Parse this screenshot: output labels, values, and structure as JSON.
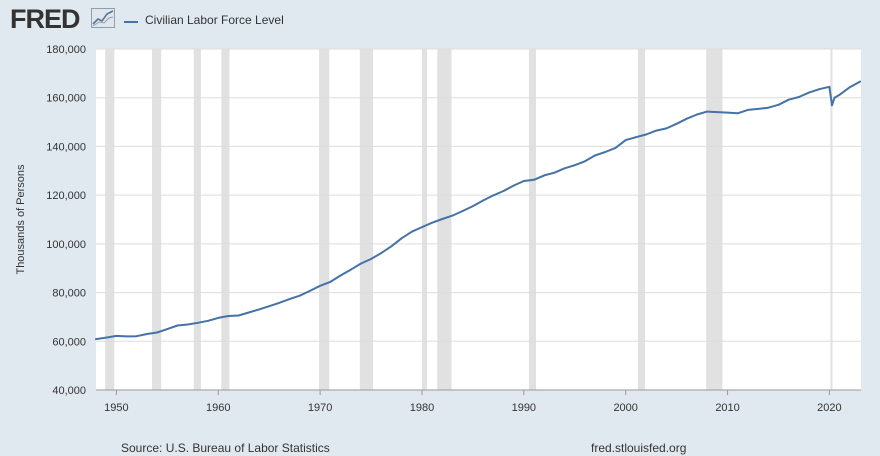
{
  "header": {
    "logo_text": "FRED",
    "logo_icon": "line-chart-icon",
    "legend_label": "Civilian Labor Force Level"
  },
  "footer": {
    "source": "Source: U.S. Bureau of Labor Statistics",
    "site": "fred.stlouisfed.org"
  },
  "colors": {
    "background": "#e1e9f0",
    "plot_background": "#ffffff",
    "line": "#4572a7",
    "recession_band": "#e1e1e1",
    "grid": "#dddddd"
  },
  "chart_data": {
    "type": "line",
    "title": "",
    "xlabel": "",
    "ylabel": "Thousands of Persons",
    "xlim": [
      1948,
      2023.1
    ],
    "ylim": [
      40000,
      180000
    ],
    "x_ticks": [
      1950,
      1960,
      1970,
      1980,
      1990,
      2000,
      2010,
      2020
    ],
    "x_tick_labels": [
      "1950",
      "1960",
      "1970",
      "1980",
      "1990",
      "2000",
      "2010",
      "2020"
    ],
    "y_ticks": [
      40000,
      60000,
      80000,
      100000,
      120000,
      140000,
      160000,
      180000
    ],
    "y_tick_labels": [
      "40,000",
      "60,000",
      "80,000",
      "100,000",
      "120,000",
      "140,000",
      "160,000",
      "180,000"
    ],
    "grid": true,
    "legend_position": "top-left",
    "recessions": [
      [
        1948.9,
        1949.8
      ],
      [
        1953.5,
        1954.4
      ],
      [
        1957.6,
        1958.3
      ],
      [
        1960.3,
        1961.1
      ],
      [
        1969.9,
        1970.9
      ],
      [
        1973.9,
        1975.2
      ],
      [
        1980.0,
        1980.5
      ],
      [
        1981.5,
        1982.9
      ],
      [
        1990.5,
        1991.2
      ],
      [
        2001.2,
        2001.9
      ],
      [
        2007.9,
        2009.5
      ],
      [
        2020.1,
        2020.3
      ]
    ],
    "series": [
      {
        "name": "Civilian Labor Force Level",
        "x": [
          1948,
          1949,
          1950,
          1951,
          1952,
          1953,
          1954,
          1955,
          1956,
          1957,
          1958,
          1959,
          1960,
          1961,
          1962,
          1963,
          1964,
          1965,
          1966,
          1967,
          1968,
          1969,
          1970,
          1971,
          1972,
          1973,
          1974,
          1975,
          1976,
          1977,
          1978,
          1979,
          1980,
          1981,
          1982,
          1983,
          1984,
          1985,
          1986,
          1987,
          1988,
          1989,
          1990,
          1991,
          1992,
          1993,
          1994,
          1995,
          1996,
          1997,
          1998,
          1999,
          2000,
          2001,
          2002,
          2003,
          2004,
          2005,
          2006,
          2007,
          2008,
          2009,
          2010,
          2011,
          2012,
          2013,
          2014,
          2015,
          2016,
          2017,
          2018,
          2019,
          2020.0,
          2020.25,
          2020.5,
          2021,
          2022,
          2023
        ],
        "values": [
          60900,
          61500,
          62200,
          62000,
          62100,
          63000,
          63600,
          65000,
          66500,
          66900,
          67600,
          68400,
          69600,
          70400,
          70600,
          71800,
          73100,
          74400,
          75800,
          77300,
          78700,
          80700,
          82800,
          84400,
          87000,
          89400,
          91900,
          93800,
          96200,
          99000,
          102300,
          105000,
          106900,
          108700,
          110200,
          111600,
          113500,
          115500,
          117800,
          119900,
          121700,
          123900,
          125800,
          126300,
          128100,
          129200,
          131000,
          132300,
          133900,
          136300,
          137700,
          139400,
          142600,
          143800,
          144900,
          146500,
          147400,
          149300,
          151400,
          153100,
          154300,
          154100,
          153900,
          153600,
          155000,
          155400,
          155900,
          157100,
          159200,
          160300,
          162100,
          163500,
          164500,
          156900,
          160000,
          161200,
          164300,
          166600
        ]
      }
    ]
  }
}
